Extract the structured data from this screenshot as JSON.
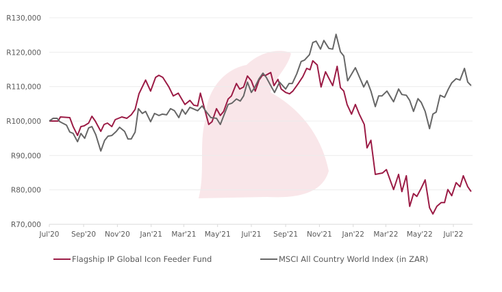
{
  "chart_data": {
    "type": "line",
    "title": "",
    "xlabel": "",
    "ylabel": "",
    "ylim": [
      70000,
      130000
    ],
    "yticks": [
      130000,
      120000,
      110000,
      100000,
      90000,
      80000,
      70000
    ],
    "ytick_labels": [
      "R130,000",
      "R120,000",
      "R110,000",
      "R100,000",
      "R90,000",
      "R80,000",
      "R70,000"
    ],
    "xlim": [
      "2020-07-01",
      "2022-08-02"
    ],
    "xticks": [
      "2020-07-01",
      "2020-09-01",
      "2020-11-01",
      "2021-01-01",
      "2021-03-01",
      "2021-05-01",
      "2021-07-01",
      "2021-09-01",
      "2021-11-01",
      "2022-01-01",
      "2022-03-01",
      "2022-05-01",
      "2022-07-01"
    ],
    "xtick_labels": [
      "Jul'20",
      "Sep'20",
      "Nov'20",
      "Jan'21",
      "Mar'21",
      "May'21",
      "Jul'21",
      "Sep'21",
      "Nov'21",
      "Jan'22",
      "Mar'22",
      "May'22",
      "Jul'22"
    ],
    "grid": "horizontal",
    "legend_position": "bottom",
    "series": [
      {
        "name": "Flagship IP Global Icon Feeder Fund",
        "color": "#9b1b45",
        "points": [
          [
            "2020-07-01",
            100000
          ],
          [
            "2020-07-17",
            100000
          ],
          [
            "2020-07-21",
            101200
          ],
          [
            "2020-08-07",
            101000
          ],
          [
            "2020-08-13",
            98400
          ],
          [
            "2020-08-21",
            95800
          ],
          [
            "2020-08-27",
            98400
          ],
          [
            "2020-09-02",
            98600
          ],
          [
            "2020-09-10",
            99400
          ],
          [
            "2020-09-16",
            101400
          ],
          [
            "2020-09-22",
            100000
          ],
          [
            "2020-10-02",
            97000
          ],
          [
            "2020-10-08",
            99000
          ],
          [
            "2020-10-14",
            99400
          ],
          [
            "2020-10-22",
            98400
          ],
          [
            "2020-10-28",
            100400
          ],
          [
            "2020-11-09",
            101200
          ],
          [
            "2020-11-18",
            100800
          ],
          [
            "2020-11-26",
            101800
          ],
          [
            "2020-12-03",
            103400
          ],
          [
            "2020-12-10",
            107900
          ],
          [
            "2020-12-22",
            111900
          ],
          [
            "2020-12-31",
            108700
          ],
          [
            "2021-01-09",
            112700
          ],
          [
            "2021-01-15",
            113300
          ],
          [
            "2021-01-22",
            112700
          ],
          [
            "2021-02-02",
            109900
          ],
          [
            "2021-02-10",
            107300
          ],
          [
            "2021-02-19",
            108100
          ],
          [
            "2021-03-03",
            104800
          ],
          [
            "2021-03-12",
            106000
          ],
          [
            "2021-03-19",
            104600
          ],
          [
            "2021-03-26",
            104400
          ],
          [
            "2021-03-31",
            108100
          ],
          [
            "2021-04-15",
            99000
          ],
          [
            "2021-04-21",
            99800
          ],
          [
            "2021-04-29",
            103600
          ],
          [
            "2021-05-06",
            101600
          ],
          [
            "2021-05-12",
            102800
          ],
          [
            "2021-05-20",
            106400
          ],
          [
            "2021-05-26",
            107300
          ],
          [
            "2021-06-04",
            110900
          ],
          [
            "2021-06-10",
            109300
          ],
          [
            "2021-06-17",
            109900
          ],
          [
            "2021-06-24",
            113100
          ],
          [
            "2021-07-01",
            111700
          ],
          [
            "2021-07-08",
            108700
          ],
          [
            "2021-07-15",
            111900
          ],
          [
            "2021-07-21",
            113300
          ],
          [
            "2021-07-27",
            113300
          ],
          [
            "2021-08-05",
            114100
          ],
          [
            "2021-08-11",
            110300
          ],
          [
            "2021-08-18",
            112100
          ],
          [
            "2021-08-24",
            109300
          ],
          [
            "2021-09-01",
            108300
          ],
          [
            "2021-09-08",
            107900
          ],
          [
            "2021-09-14",
            108700
          ],
          [
            "2021-09-23",
            110700
          ],
          [
            "2021-10-02",
            112900
          ],
          [
            "2021-10-09",
            115300
          ],
          [
            "2021-10-15",
            114900
          ],
          [
            "2021-10-20",
            117500
          ],
          [
            "2021-10-28",
            116300
          ],
          [
            "2021-11-04",
            109900
          ],
          [
            "2021-11-12",
            114300
          ],
          [
            "2021-11-25",
            110300
          ],
          [
            "2021-12-03",
            115900
          ],
          [
            "2021-12-09",
            109700
          ],
          [
            "2021-12-15",
            108700
          ],
          [
            "2021-12-21",
            104800
          ],
          [
            "2021-12-29",
            102000
          ],
          [
            "2022-01-05",
            104800
          ],
          [
            "2022-01-12",
            102000
          ],
          [
            "2022-01-21",
            99000
          ],
          [
            "2022-01-26",
            92200
          ],
          [
            "2022-02-02",
            94400
          ],
          [
            "2022-02-10",
            84500
          ],
          [
            "2022-02-23",
            84900
          ],
          [
            "2022-03-02",
            85900
          ],
          [
            "2022-03-15",
            80100
          ],
          [
            "2022-03-24",
            84500
          ],
          [
            "2022-03-30",
            79500
          ],
          [
            "2022-04-07",
            84100
          ],
          [
            "2022-04-13",
            75200
          ],
          [
            "2022-04-20",
            78900
          ],
          [
            "2022-04-26",
            78100
          ],
          [
            "2022-05-04",
            80500
          ],
          [
            "2022-05-11",
            82900
          ],
          [
            "2022-05-19",
            74800
          ],
          [
            "2022-05-25",
            73000
          ],
          [
            "2022-06-01",
            75200
          ],
          [
            "2022-06-09",
            76300
          ],
          [
            "2022-06-15",
            76300
          ],
          [
            "2022-06-21",
            80100
          ],
          [
            "2022-06-28",
            78300
          ],
          [
            "2022-07-06",
            82100
          ],
          [
            "2022-07-13",
            80900
          ],
          [
            "2022-07-19",
            84100
          ],
          [
            "2022-07-27",
            80900
          ],
          [
            "2022-08-02",
            79500
          ]
        ]
      },
      {
        "name": "MSCI All Country World Index (in ZAR)",
        "color": "#666666",
        "points": [
          [
            "2020-07-01",
            100000
          ],
          [
            "2020-07-08",
            100800
          ],
          [
            "2020-07-15",
            100800
          ],
          [
            "2020-07-20",
            99800
          ],
          [
            "2020-08-01",
            98800
          ],
          [
            "2020-08-07",
            96800
          ],
          [
            "2020-08-13",
            96400
          ],
          [
            "2020-08-21",
            94000
          ],
          [
            "2020-08-27",
            96400
          ],
          [
            "2020-09-03",
            95000
          ],
          [
            "2020-09-10",
            98000
          ],
          [
            "2020-09-16",
            98400
          ],
          [
            "2020-09-23",
            96000
          ],
          [
            "2020-10-02",
            91300
          ],
          [
            "2020-10-09",
            94400
          ],
          [
            "2020-10-15",
            95600
          ],
          [
            "2020-10-22",
            95800
          ],
          [
            "2020-10-30",
            97000
          ],
          [
            "2020-11-05",
            98200
          ],
          [
            "2020-11-14",
            97000
          ],
          [
            "2020-11-20",
            94800
          ],
          [
            "2020-11-26",
            94800
          ],
          [
            "2020-12-03",
            96800
          ],
          [
            "2020-12-09",
            103600
          ],
          [
            "2020-12-16",
            102200
          ],
          [
            "2020-12-22",
            102800
          ],
          [
            "2020-12-31",
            99800
          ],
          [
            "2021-01-07",
            102200
          ],
          [
            "2021-01-15",
            101600
          ],
          [
            "2021-01-21",
            102000
          ],
          [
            "2021-01-29",
            101800
          ],
          [
            "2021-02-05",
            103600
          ],
          [
            "2021-02-12",
            103000
          ],
          [
            "2021-02-20",
            101000
          ],
          [
            "2021-02-26",
            103400
          ],
          [
            "2021-03-04",
            102000
          ],
          [
            "2021-03-12",
            104000
          ],
          [
            "2021-03-26",
            103000
          ],
          [
            "2021-04-03",
            104400
          ],
          [
            "2021-04-12",
            102400
          ],
          [
            "2021-04-19",
            101000
          ],
          [
            "2021-04-29",
            100800
          ],
          [
            "2021-05-06",
            99000
          ],
          [
            "2021-05-20",
            104800
          ],
          [
            "2021-05-27",
            105200
          ],
          [
            "2021-06-04",
            106400
          ],
          [
            "2021-06-11",
            105800
          ],
          [
            "2021-06-17",
            107300
          ],
          [
            "2021-06-24",
            111300
          ],
          [
            "2021-07-01",
            108300
          ],
          [
            "2021-07-07",
            109700
          ],
          [
            "2021-07-15",
            112300
          ],
          [
            "2021-07-22",
            113900
          ],
          [
            "2021-07-28",
            112700
          ],
          [
            "2021-08-05",
            110300
          ],
          [
            "2021-08-12",
            108300
          ],
          [
            "2021-08-21",
            111300
          ],
          [
            "2021-09-01",
            109300
          ],
          [
            "2021-09-07",
            110900
          ],
          [
            "2021-09-13",
            110900
          ],
          [
            "2021-09-21",
            113700
          ],
          [
            "2021-09-29",
            117300
          ],
          [
            "2021-10-05",
            117700
          ],
          [
            "2021-10-14",
            119300
          ],
          [
            "2021-10-20",
            122800
          ],
          [
            "2021-10-26",
            123200
          ],
          [
            "2021-11-03",
            120900
          ],
          [
            "2021-11-09",
            123400
          ],
          [
            "2021-11-18",
            121100
          ],
          [
            "2021-11-25",
            120900
          ],
          [
            "2021-12-01",
            125200
          ],
          [
            "2021-12-09",
            120100
          ],
          [
            "2021-12-15",
            118900
          ],
          [
            "2021-12-22",
            111700
          ],
          [
            "2022-01-05",
            115500
          ],
          [
            "2022-01-20",
            109900
          ],
          [
            "2022-01-26",
            111700
          ],
          [
            "2022-02-02",
            108700
          ],
          [
            "2022-02-10",
            104200
          ],
          [
            "2022-02-16",
            107300
          ],
          [
            "2022-02-22",
            107300
          ],
          [
            "2022-03-03",
            108700
          ],
          [
            "2022-03-15",
            105600
          ],
          [
            "2022-03-24",
            109300
          ],
          [
            "2022-03-30",
            107700
          ],
          [
            "2022-04-07",
            107500
          ],
          [
            "2022-04-13",
            106000
          ],
          [
            "2022-04-20",
            102800
          ],
          [
            "2022-04-28",
            106500
          ],
          [
            "2022-05-04",
            105400
          ],
          [
            "2022-05-11",
            102800
          ],
          [
            "2022-05-19",
            97800
          ],
          [
            "2022-05-25",
            102000
          ],
          [
            "2022-05-31",
            102600
          ],
          [
            "2022-06-07",
            107500
          ],
          [
            "2022-06-15",
            106900
          ],
          [
            "2022-06-22",
            109300
          ],
          [
            "2022-06-28",
            111100
          ],
          [
            "2022-07-06",
            112300
          ],
          [
            "2022-07-13",
            111900
          ],
          [
            "2022-07-21",
            115300
          ],
          [
            "2022-07-27",
            111300
          ],
          [
            "2022-08-02",
            110300
          ]
        ]
      }
    ]
  }
}
